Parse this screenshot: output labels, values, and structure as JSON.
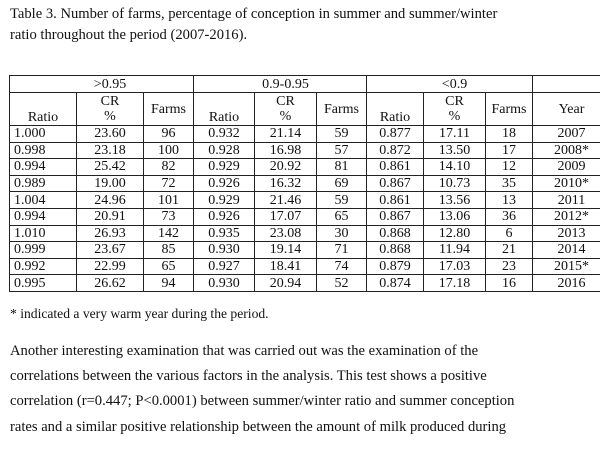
{
  "caption": {
    "line1": "Table 3. Number of farms, percentage of conception in summer and summer/winter",
    "line2": "ratio throughout the period (2007-2016)."
  },
  "table": {
    "groups": [
      ">0.95",
      "0.9-0.95",
      "<0.9"
    ],
    "cr_label": "CR",
    "pct_label": "%",
    "headers": {
      "ratio": "Ratio",
      "farms": "Farms",
      "year": "Year"
    },
    "rows": [
      [
        "1.000",
        "23.60",
        "96",
        "0.932",
        "21.14",
        "59",
        "0.877",
        "17.11",
        "18",
        "2007"
      ],
      [
        "0.998",
        "23.18",
        "100",
        "0.928",
        "16.98",
        "57",
        "0.872",
        "13.50",
        "17",
        "2008*"
      ],
      [
        "0.994",
        "25.42",
        "82",
        "0.929",
        "20.92",
        "81",
        "0.861",
        "14.10",
        "12",
        "2009"
      ],
      [
        "0.989",
        "19.00",
        "72",
        "0.926",
        "16.32",
        "69",
        "0.867",
        "10.73",
        "35",
        "2010*"
      ],
      [
        "1.004",
        "24.96",
        "101",
        "0.929",
        "21.46",
        "59",
        "0.861",
        "13.56",
        "13",
        "2011"
      ],
      [
        "0.994",
        "20.91",
        "73",
        "0.926",
        "17.07",
        "65",
        "0.867",
        "13.06",
        "36",
        "2012*"
      ],
      [
        "1.010",
        "26.93",
        "142",
        "0.935",
        "23.08",
        "30",
        "0.868",
        "12.80",
        "6",
        "2013"
      ],
      [
        "0.999",
        "23.67",
        "85",
        "0.930",
        "19.14",
        "71",
        "0.868",
        "11.94",
        "21",
        "2014"
      ],
      [
        "0.992",
        "22.99",
        "65",
        "0.927",
        "18.41",
        "74",
        "0.879",
        "17.03",
        "23",
        "2015*"
      ],
      [
        "0.995",
        "26.62",
        "94",
        "0.930",
        "20.94",
        "52",
        "0.874",
        "17.18",
        "16",
        "2016"
      ]
    ]
  },
  "footnote": "* indicated a very warm year during the period.",
  "paragraph": [
    "Another interesting examination that was carried out was the examination of the",
    "correlations between the various factors in the analysis. This test shows a positive",
    "correlation (r=0.447; P<0.0001) between summer/winter ratio and summer conception",
    "rates and a similar positive relationship between the amount of milk produced during"
  ]
}
